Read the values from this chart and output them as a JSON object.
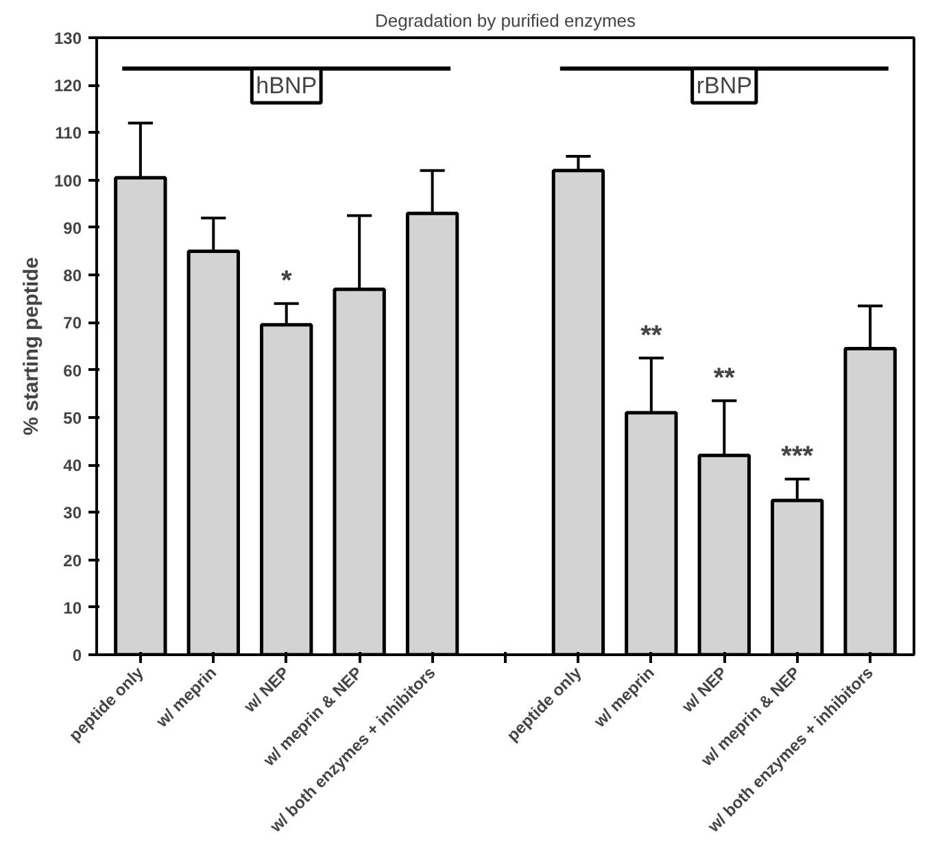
{
  "chart_data": {
    "type": "bar",
    "title": "Degradation by purified enzymes",
    "ylabel": "% starting peptide",
    "categories": [
      "peptide only",
      "w/ meprin",
      "w/ NEP",
      "w/ meprin & NEP",
      "w/ both enzymes + inhibitors",
      null,
      "peptide only",
      "w/ meprin",
      "w/ NEP",
      "w/ meprin & NEP",
      "w/ both enzymes + inhibitors"
    ],
    "values": [
      100.5,
      85,
      69.5,
      77,
      93,
      null,
      102,
      51,
      42,
      32.5,
      64.5
    ],
    "errors": [
      [
        100.5,
        112
      ],
      [
        85,
        92
      ],
      [
        69.5,
        74
      ],
      [
        77,
        92.5
      ],
      [
        93,
        102
      ],
      null,
      [
        102,
        105
      ],
      [
        51,
        62.5
      ],
      [
        42,
        53.5
      ],
      [
        32.5,
        37
      ],
      [
        64.5,
        73.5
      ]
    ],
    "value_labels": [
      null,
      null,
      "*",
      null,
      null,
      null,
      null,
      "**",
      "**",
      "***",
      null
    ],
    "color": "#d3d3d3",
    "ref_lines": [
      {
        "axis": "y",
        "value": 123.5,
        "color": "#000000"
      }
    ],
    "annotations": [
      "hBNP",
      "rBNP"
    ],
    "ylim": [
      0,
      130
    ],
    "yticks": [
      0,
      10,
      20,
      30,
      40,
      50,
      60,
      70,
      80,
      90,
      100,
      110,
      120,
      130
    ],
    "grid": false
  }
}
